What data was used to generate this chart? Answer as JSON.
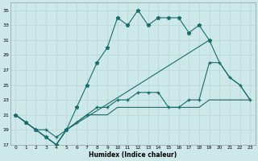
{
  "bg_color": "#cde8e8",
  "grid_color": "#b8d4d4",
  "line_color": "#1a6b6b",
  "xlabel": "Humidex (Indice chaleur)",
  "xlim": [
    -0.5,
    23.5
  ],
  "ylim": [
    17,
    36
  ],
  "xticks": [
    0,
    1,
    2,
    3,
    4,
    5,
    6,
    7,
    8,
    9,
    10,
    11,
    12,
    13,
    14,
    15,
    16,
    17,
    18,
    19,
    20,
    21,
    22,
    23
  ],
  "yticks": [
    17,
    19,
    21,
    23,
    25,
    27,
    29,
    31,
    33,
    35
  ],
  "curve1_x": [
    0,
    1,
    2,
    3,
    4,
    5,
    6,
    7,
    8,
    9,
    10,
    11,
    12,
    13,
    14,
    15,
    16,
    17,
    18,
    19
  ],
  "curve1_y": [
    21,
    20,
    19,
    18,
    17,
    19,
    22,
    25,
    28,
    30,
    34,
    33,
    35,
    33,
    34,
    34,
    34,
    32,
    33,
    31
  ],
  "curve2_x": [
    0,
    1,
    2,
    3,
    4,
    5,
    6,
    7,
    8,
    9,
    10,
    11,
    12,
    13,
    14,
    15,
    16,
    17,
    18,
    19,
    20,
    21,
    22,
    23
  ],
  "curve2_y": [
    21,
    20,
    19,
    19,
    18,
    19,
    20,
    21,
    22,
    22,
    23,
    23,
    24,
    24,
    24,
    22,
    22,
    23,
    23,
    28,
    28,
    26,
    25,
    23
  ],
  "curve3_x": [
    0,
    1,
    2,
    3,
    4,
    5,
    6,
    7,
    8,
    9,
    10,
    11,
    12,
    13,
    14,
    15,
    16,
    17,
    18,
    19,
    20,
    21,
    22,
    23
  ],
  "curve3_y": [
    21,
    20,
    19,
    18,
    17,
    19,
    20,
    21,
    21,
    21,
    22,
    22,
    22,
    22,
    22,
    22,
    22,
    22,
    22,
    23,
    23,
    23,
    23,
    23
  ],
  "curve_bottom_x": [
    0,
    1,
    2,
    3,
    4,
    5,
    19,
    20,
    21,
    22,
    23
  ],
  "curve_bottom_y": [
    21,
    20,
    19,
    18,
    17,
    19,
    31,
    28,
    26,
    25,
    23
  ]
}
